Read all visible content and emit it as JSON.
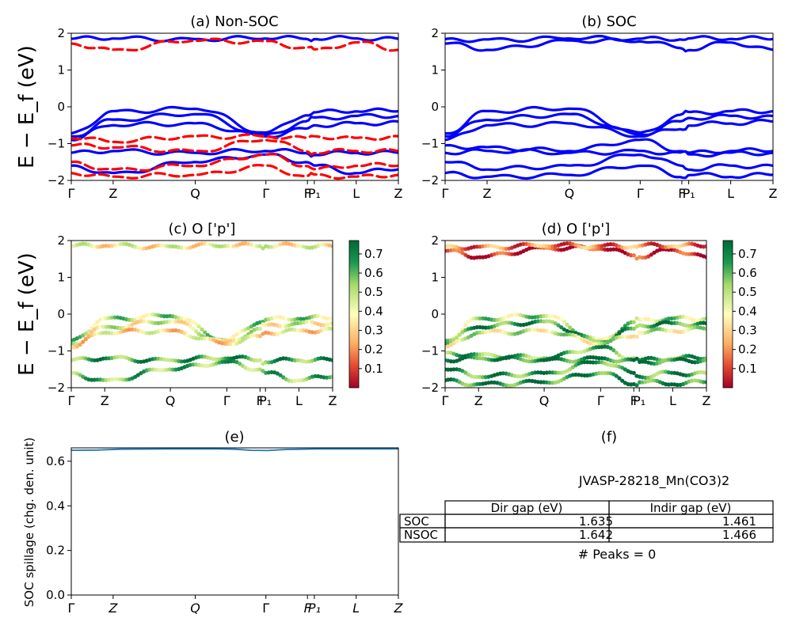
{
  "kpath": [
    "Γ",
    "Z",
    "Q",
    "Γ",
    "F",
    "P₁",
    "L",
    "Z"
  ],
  "kpath_frac": [
    0,
    0.128,
    0.379,
    0.595,
    0.722,
    0.743,
    0.871,
    1.0
  ],
  "colors": {
    "nonsoc": "#ff0000",
    "soc": "#0000ff",
    "line": "#1f77b4"
  },
  "colorbar": {
    "ticks": [
      "0.1",
      "0.2",
      "0.3",
      "0.4",
      "0.5",
      "0.6",
      "0.7"
    ],
    "min": 0.0,
    "max": 0.77,
    "colormap": "RdYlGn"
  },
  "chart_data": [
    {
      "id": "a",
      "type": "line",
      "title": "(a) Non-SOC",
      "ylabel": "E − E_f (eV)",
      "ylim": [
        -2,
        2
      ],
      "yticks": [
        "2",
        "1",
        "0",
        "−1",
        "−2"
      ],
      "series": [
        {
          "kind": "solid",
          "color": "#0000ff",
          "bands": [
            [
              1.85,
              1.86,
              1.84,
              1.86,
              1.85,
              1.85,
              1.86,
              1.85
            ],
            [
              -0.72,
              -0.12,
              -0.05,
              -0.7,
              -0.22,
              -0.15,
              -0.12,
              -0.12
            ],
            [
              -0.8,
              -0.35,
              -0.2,
              -0.75,
              -0.4,
              -0.3,
              -0.25,
              -0.25
            ],
            [
              -0.9,
              -0.5,
              -0.45,
              -0.8,
              -0.6,
              -0.5,
              -0.45,
              -0.4
            ],
            [
              -1.25,
              -1.2,
              -1.25,
              -1.2,
              -1.25,
              -1.3,
              -1.25,
              -1.25
            ],
            [
              -1.6,
              -1.8,
              -1.5,
              -1.3,
              -1.5,
              -1.6,
              -1.8,
              -1.7
            ]
          ]
        },
        {
          "kind": "dashed",
          "color": "#ff0000",
          "bands": [
            [
              1.72,
              1.55,
              1.8,
              1.78,
              1.6,
              1.55,
              1.75,
              1.55
            ],
            [
              -0.85,
              -0.95,
              -0.8,
              -0.8,
              -0.85,
              -0.8,
              -0.85,
              -0.8
            ],
            [
              -1.05,
              -1.1,
              -1.2,
              -0.9,
              -1.2,
              -1.25,
              -1.2,
              -1.2
            ],
            [
              -1.5,
              -1.7,
              -1.6,
              -1.3,
              -1.6,
              -1.7,
              -1.6,
              -1.6
            ],
            [
              -1.8,
              -1.9,
              -1.85,
              -1.6,
              -1.9,
              -1.85,
              -1.9,
              -1.85
            ]
          ]
        }
      ]
    },
    {
      "id": "b",
      "type": "line",
      "title": "(b) SOC",
      "ylim": [
        -2,
        2
      ],
      "yticks": [
        "2",
        "1",
        "0",
        "−1",
        "−2"
      ],
      "series": [
        {
          "kind": "solid",
          "color": "#0000ff",
          "bands": [
            [
              1.72,
              1.55,
              1.8,
              1.78,
              1.6,
              1.55,
              1.75,
              1.55
            ],
            [
              1.84,
              1.83,
              1.86,
              1.85,
              1.84,
              1.86,
              1.85,
              1.84
            ],
            [
              -0.72,
              -0.12,
              -0.05,
              -0.7,
              -0.22,
              -0.15,
              -0.12,
              -0.12
            ],
            [
              -0.8,
              -0.35,
              -0.2,
              -0.75,
              -0.4,
              -0.3,
              -0.25,
              -0.25
            ],
            [
              -0.9,
              -0.5,
              -0.45,
              -0.8,
              -0.6,
              -0.5,
              -0.45,
              -0.4
            ],
            [
              -1.05,
              -1.1,
              -1.2,
              -0.9,
              -1.2,
              -1.25,
              -1.2,
              -1.2
            ],
            [
              -1.25,
              -1.2,
              -1.25,
              -1.2,
              -1.25,
              -1.3,
              -1.25,
              -1.25
            ],
            [
              -1.5,
              -1.7,
              -1.6,
              -1.3,
              -1.6,
              -1.7,
              -1.6,
              -1.6
            ],
            [
              -1.8,
              -1.9,
              -1.85,
              -1.6,
              -1.9,
              -1.85,
              -1.9,
              -1.85
            ]
          ]
        }
      ]
    },
    {
      "id": "c",
      "type": "scatter",
      "title": "(c)  O ['p']",
      "ylabel": "E − E_f (eV)",
      "ylim": [
        -2,
        2
      ],
      "yticks": [
        "2",
        "1",
        "0",
        "−1",
        "−2"
      ],
      "bands": [
        {
          "e": [
            1.85,
            1.86,
            1.84,
            1.86,
            1.85,
            1.85,
            1.86,
            1.85
          ],
          "w": 0.38
        },
        {
          "e": [
            -0.72,
            -0.12,
            -0.05,
            -0.7,
            -0.22,
            -0.15,
            -0.12,
            -0.12
          ],
          "w": 0.5
        },
        {
          "e": [
            -0.8,
            -0.35,
            -0.2,
            -0.75,
            -0.4,
            -0.3,
            -0.25,
            -0.25
          ],
          "w": 0.42
        },
        {
          "e": [
            -0.9,
            -0.5,
            -0.45,
            -0.8,
            -0.6,
            -0.5,
            -0.45,
            -0.4
          ],
          "w": 0.35
        },
        {
          "e": [
            -1.25,
            -1.2,
            -1.25,
            -1.2,
            -1.25,
            -1.3,
            -1.25,
            -1.25
          ],
          "w": 0.62
        },
        {
          "e": [
            -1.6,
            -1.8,
            -1.5,
            -1.3,
            -1.5,
            -1.6,
            -1.8,
            -1.7
          ],
          "w": 0.58
        }
      ]
    },
    {
      "id": "d",
      "type": "scatter",
      "title": "(d) O ['p']",
      "ylim": [
        -2,
        2
      ],
      "yticks": [
        "2",
        "1",
        "0",
        "−1",
        "−2"
      ],
      "bands": [
        {
          "e": [
            1.72,
            1.55,
            1.8,
            1.78,
            1.6,
            1.55,
            1.75,
            1.55
          ],
          "w": 0.05
        },
        {
          "e": [
            1.84,
            1.83,
            1.86,
            1.85,
            1.84,
            1.86,
            1.85,
            1.84
          ],
          "w": 0.18
        },
        {
          "e": [
            -0.72,
            -0.12,
            -0.05,
            -0.7,
            -0.22,
            -0.15,
            -0.12,
            -0.12
          ],
          "w": 0.5
        },
        {
          "e": [
            -0.8,
            -0.35,
            -0.2,
            -0.75,
            -0.4,
            -0.3,
            -0.25,
            -0.25
          ],
          "w": 0.66
        },
        {
          "e": [
            -0.9,
            -0.5,
            -0.45,
            -0.8,
            -0.6,
            -0.5,
            -0.45,
            -0.4
          ],
          "w": 0.45
        },
        {
          "e": [
            -1.05,
            -1.1,
            -1.2,
            -0.9,
            -1.2,
            -1.25,
            -1.2,
            -1.2
          ],
          "w": 0.6
        },
        {
          "e": [
            -1.25,
            -1.2,
            -1.25,
            -1.2,
            -1.25,
            -1.3,
            -1.25,
            -1.25
          ],
          "w": 0.7
        },
        {
          "e": [
            -1.5,
            -1.7,
            -1.6,
            -1.3,
            -1.6,
            -1.7,
            -1.6,
            -1.6
          ],
          "w": 0.64
        },
        {
          "e": [
            -1.8,
            -1.9,
            -1.85,
            -1.6,
            -1.9,
            -1.85,
            -1.9,
            -1.85
          ],
          "w": 0.68
        }
      ]
    },
    {
      "id": "e",
      "type": "line",
      "title": "(e)",
      "ylabel": "SOC spillage (chg. den. unit)",
      "ylim": [
        0,
        0.66
      ],
      "yticks": [
        "0.6",
        "0.4",
        "0.2",
        "0.0"
      ],
      "x_frac": [
        0,
        0.08,
        0.15,
        0.3,
        0.45,
        0.5,
        0.55,
        0.6,
        0.66,
        0.75,
        0.9,
        1.0
      ],
      "values": [
        0.649,
        0.65,
        0.654,
        0.655,
        0.655,
        0.654,
        0.649,
        0.648,
        0.653,
        0.655,
        0.655,
        0.655
      ]
    }
  ],
  "panel_f": {
    "title": "(f)",
    "material": "JVASP-28218_Mn(CO3)2",
    "headers": [
      "Dir gap (eV)",
      "Indir gap (eV)"
    ],
    "rows": [
      {
        "label": "SOC",
        "dir": "1.635",
        "indir": "1.461"
      },
      {
        "label": "NSOC",
        "dir": "1.642",
        "indir": "1.466"
      }
    ],
    "peaks": "# Peaks = 0"
  }
}
